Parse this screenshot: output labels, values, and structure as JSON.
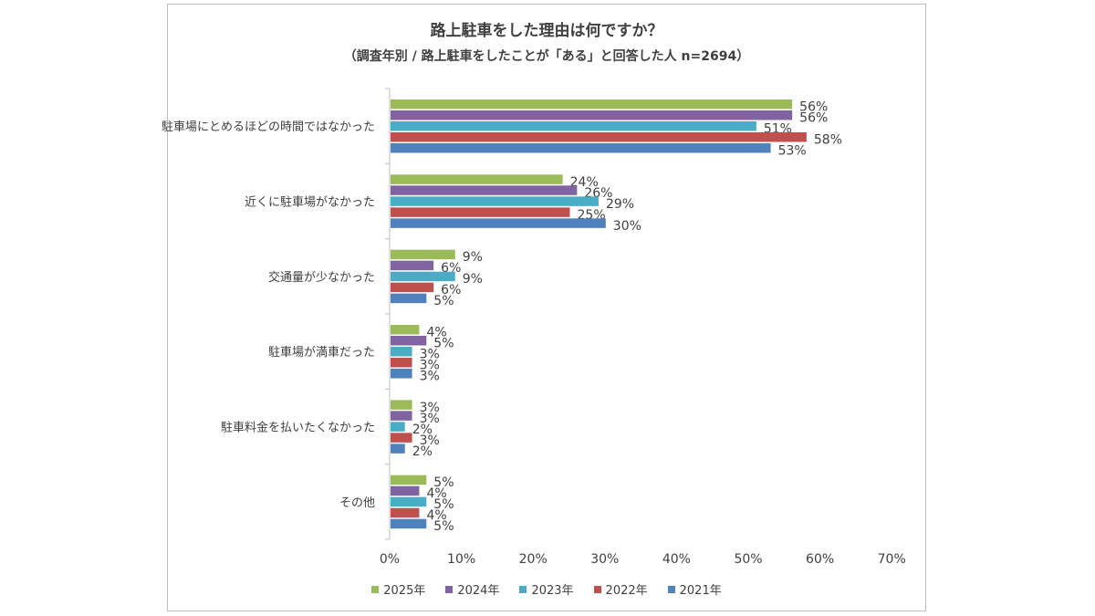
{
  "chart_data": {
    "type": "bar",
    "orientation": "horizontal",
    "title": "路上駐車をした理由は何ですか？",
    "subtitle": "（調査年別 / 路上駐車をしたことが「ある」と回答した人 n=2694）",
    "categories": [
      "駐車場にとめるほどの時間ではなかった",
      "近くに駐車場がなかった",
      "交通量が少なかった",
      "駐車場が満車だった",
      "駐車料金を払いたくなかった",
      "その他"
    ],
    "series": [
      {
        "name": "2025年",
        "color": "#9bbb59",
        "values": [
          56,
          24,
          9,
          4,
          3,
          5
        ]
      },
      {
        "name": "2024年",
        "color": "#8064a2",
        "values": [
          56,
          26,
          6,
          5,
          3,
          4
        ]
      },
      {
        "name": "2023年",
        "color": "#4bacc6",
        "values": [
          51,
          29,
          9,
          3,
          2,
          5
        ]
      },
      {
        "name": "2022年",
        "color": "#c0504d",
        "values": [
          58,
          25,
          6,
          3,
          3,
          4
        ]
      },
      {
        "name": "2021年",
        "color": "#4f81bd",
        "values": [
          53,
          30,
          5,
          3,
          2,
          5
        ]
      }
    ],
    "xlim": [
      0,
      70
    ],
    "x_ticks": [
      "0%",
      "10%",
      "20%",
      "30%",
      "40%",
      "50%",
      "60%",
      "70%"
    ],
    "value_suffix": "%",
    "grid": false,
    "legend_position": "bottom"
  }
}
